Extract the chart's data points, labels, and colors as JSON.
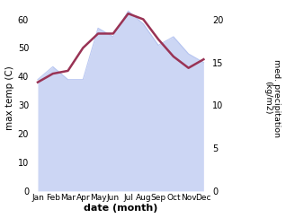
{
  "months": [
    "Jan",
    "Feb",
    "Mar",
    "Apr",
    "May",
    "Jun",
    "Jul",
    "Aug",
    "Sep",
    "Oct",
    "Nov",
    "Dec"
  ],
  "max_temp": [
    38,
    41,
    42,
    50,
    55,
    55,
    62,
    60,
    53,
    47,
    43,
    46
  ],
  "med_precip": [
    13,
    14.5,
    13,
    13,
    19,
    18,
    21,
    19.5,
    17,
    18,
    16,
    15
  ],
  "temp_ylim": [
    0,
    65
  ],
  "precip_ylim": [
    0,
    21.7
  ],
  "temp_yticks": [
    0,
    10,
    20,
    30,
    40,
    50,
    60
  ],
  "precip_yticks": [
    0,
    5,
    10,
    15,
    20
  ],
  "fill_color": "#aabbee",
  "fill_alpha": 0.6,
  "line_color": "#993355",
  "line_width": 1.8,
  "xlabel": "date (month)",
  "ylabel_left": "max temp (C)",
  "ylabel_right": "med. precipitation\n(kg/m2)",
  "bg_color": "#ffffff"
}
